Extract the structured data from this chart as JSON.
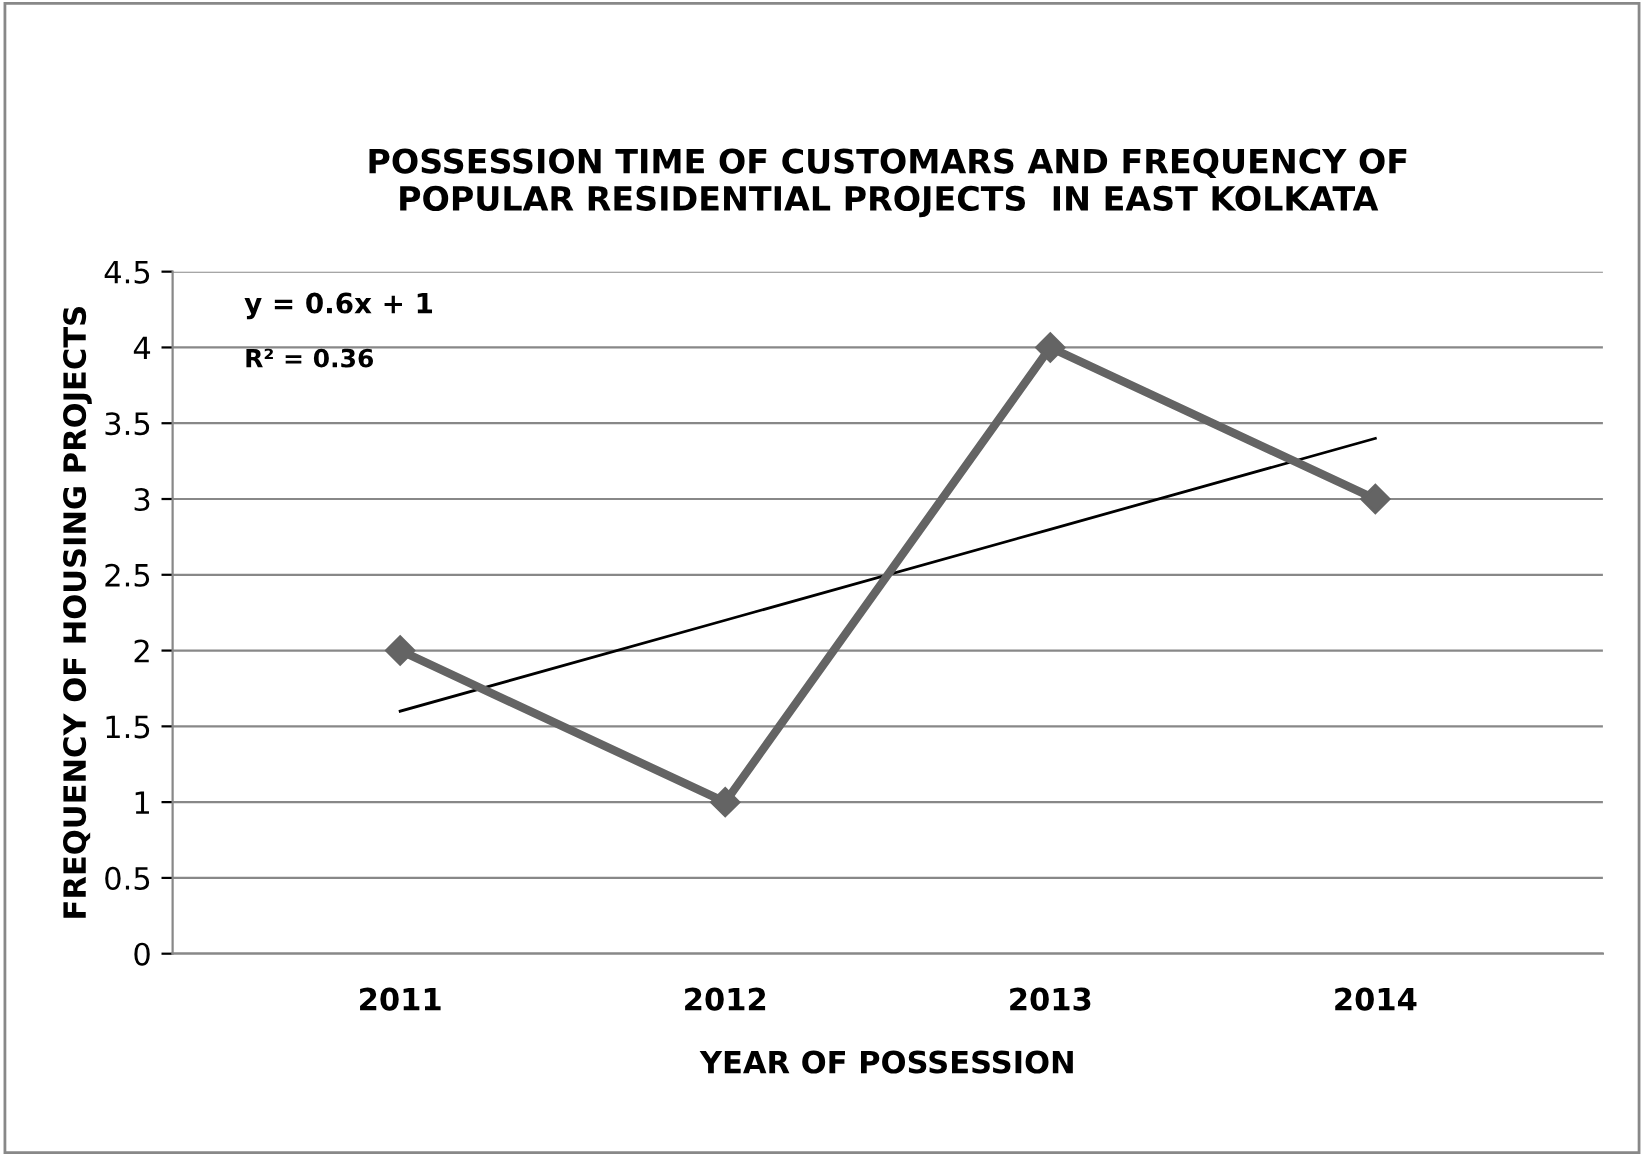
{
  "chart_data": {
    "type": "line",
    "title": "POSSESSION TIME OF CUSTOMARS AND FREQUENCY OF\nPOPULAR RESIDENTIAL PROJECTS  IN EAST KOLKATA",
    "xlabel": "YEAR OF POSSESSION",
    "ylabel": "FREQUENCY OF HOUSING PROJECTS",
    "categories": [
      "2011",
      "2012",
      "2013",
      "2014"
    ],
    "series": [
      {
        "color": "#646464",
        "values": [
          2,
          1,
          4,
          3
        ],
        "marker": "diamond",
        "line_style": "solid"
      },
      {
        "color": "#000000",
        "values": [
          1.6,
          2.2,
          2.8,
          3.4
        ],
        "marker": "none",
        "line_style": "solid"
      }
    ],
    "annotations": [
      "y = 0.6x + 1",
      "R² = 0.36"
    ],
    "ylim": [
      0,
      4.5
    ],
    "yticks": [
      0,
      0.5,
      1,
      1.5,
      2,
      2.5,
      3,
      3.5,
      4,
      4.5
    ],
    "grid": "y",
    "legend": false
  }
}
